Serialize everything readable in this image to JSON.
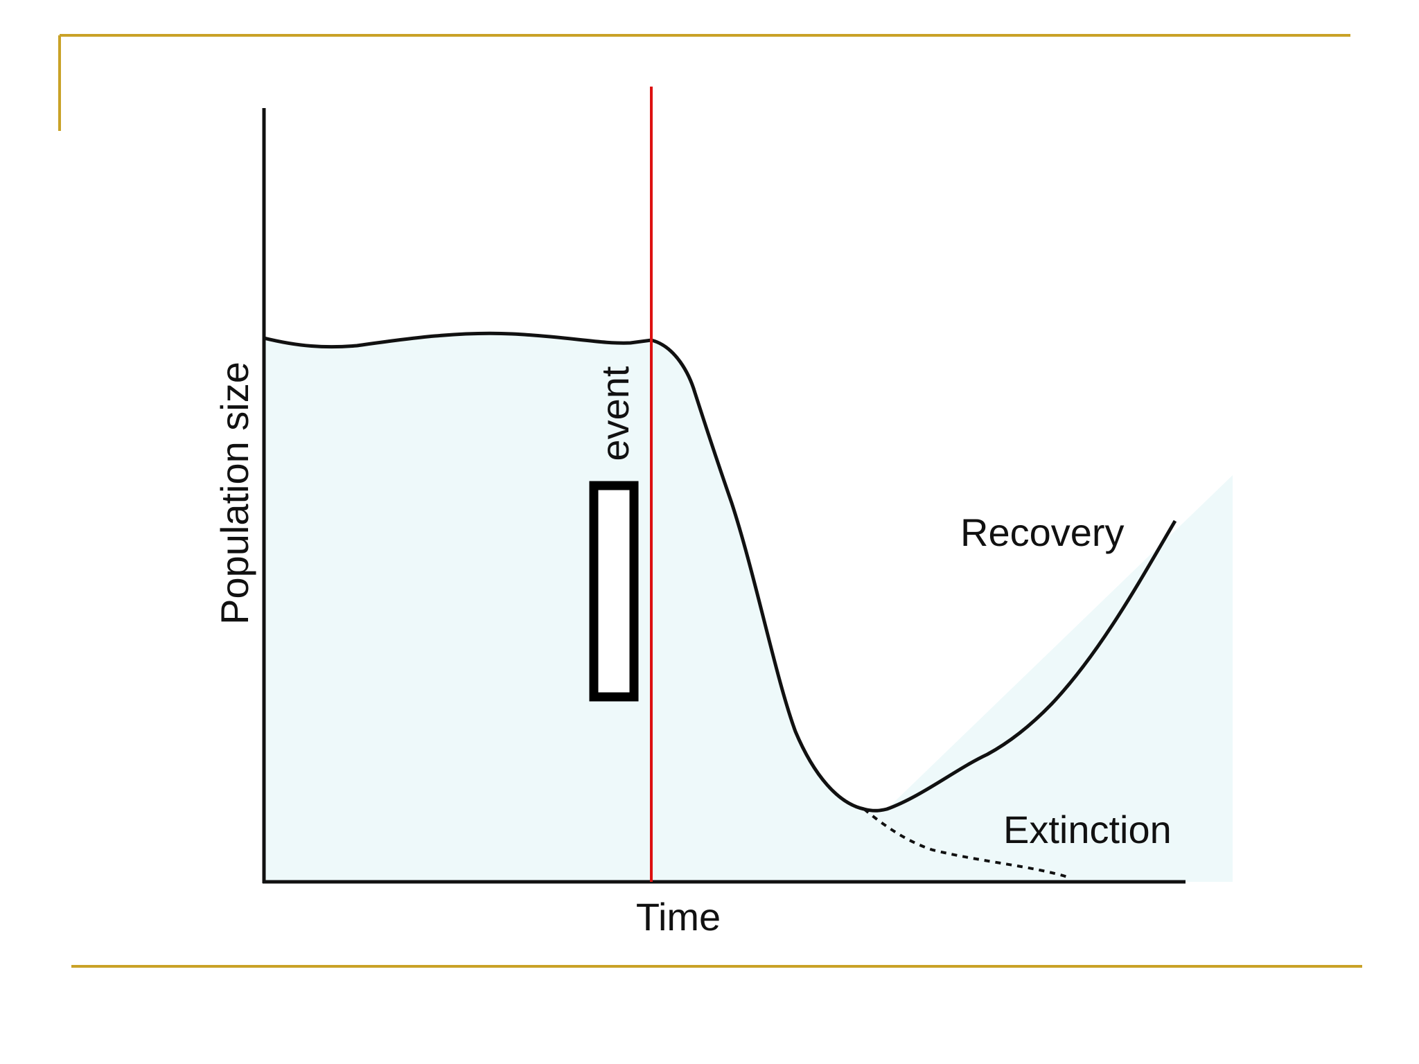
{
  "diagram": {
    "y_axis_label": "Population size",
    "x_axis_label": "Time",
    "event_label": "event",
    "recovery_label": "Recovery",
    "extinction_label": "Extinction"
  }
}
